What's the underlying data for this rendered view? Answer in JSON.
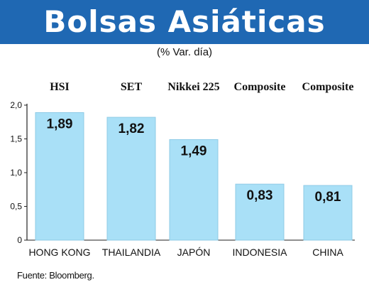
{
  "header": {
    "title": "Bolsas Asiáticas",
    "subtitle": "(% Var. día)"
  },
  "source": "Fuente: Bloomberg.",
  "colors": {
    "banner": "#1f68b3",
    "bar": "#a9e0f7",
    "bar_stroke": "#8fcbe6"
  },
  "chart_data": {
    "type": "bar",
    "title": "Bolsas Asiáticas",
    "subtitle": "(% Var. día)",
    "index_labels": [
      "HSI",
      "SET",
      "Nikkei 225",
      "Composite",
      "Composite"
    ],
    "categories": [
      "HONG KONG",
      "THAILANDIA",
      "JAPÓN",
      "INDONESIA",
      "CHINA"
    ],
    "values": [
      1.89,
      1.82,
      1.49,
      0.83,
      0.81
    ],
    "value_labels": [
      "1,89",
      "1,82",
      "1,49",
      "0,83",
      "0,81"
    ],
    "yticks": [
      0,
      0.5,
      1.0,
      1.5,
      2.0
    ],
    "ytick_labels": [
      "0",
      "0,5",
      "1,0",
      "1,5",
      "2,0"
    ],
    "ylim": [
      0,
      2.0
    ],
    "grid": false,
    "legend": "none"
  }
}
